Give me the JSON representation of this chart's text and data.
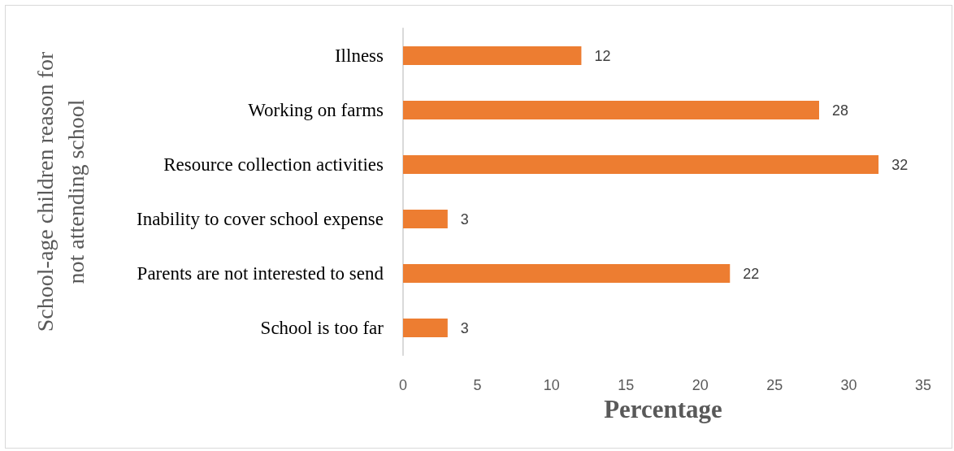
{
  "chart_data": {
    "type": "bar",
    "orientation": "horizontal",
    "ylabel": "School-age children reason for not attending school",
    "xlabel": "Percentage",
    "categories": [
      "Illness",
      "Working on farms",
      "Resource collection activities",
      "Inability to cover school expense",
      "Parents are not interested to send",
      "School is too far"
    ],
    "values": [
      12,
      28,
      32,
      3,
      22,
      3
    ],
    "color": "#ed7d31",
    "xlim": [
      0,
      35
    ],
    "xticks": [
      0,
      5,
      10,
      15,
      20,
      25,
      30,
      35
    ],
    "data_labels": true
  }
}
